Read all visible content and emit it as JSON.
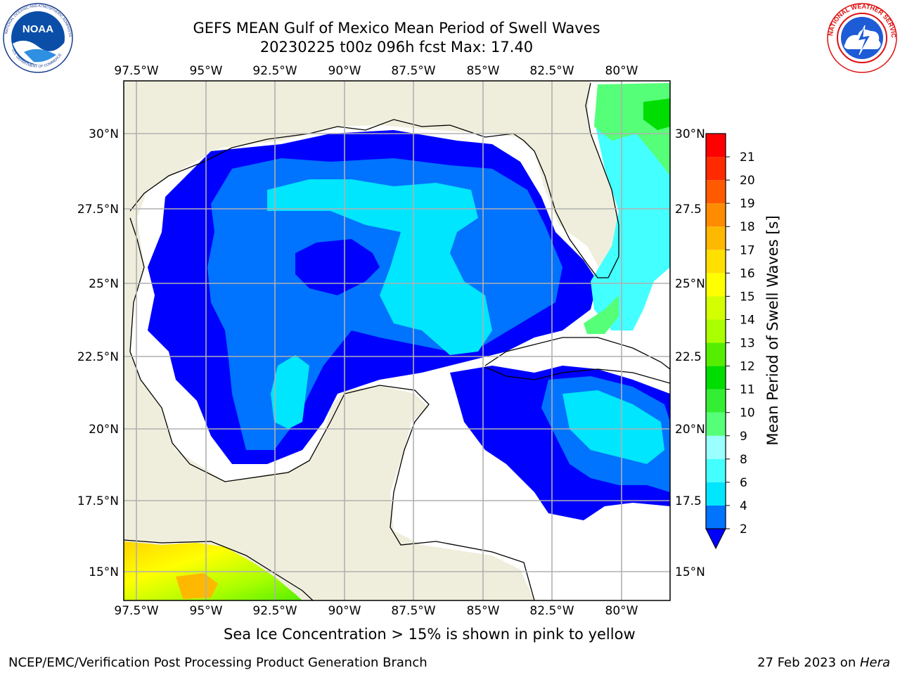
{
  "header": {
    "title_line1": "GEFS MEAN Gulf of Mexico Mean Period of Swell Waves",
    "title_line2": "20230225 t00z 096h fcst   Max: 17.40"
  },
  "logos": {
    "left": "NOAA",
    "left_ring_text": "NATIONAL OCEANIC AND ATMOSPHERIC ADMINISTRATION",
    "left_ring_bottom": "U.S. DEPARTMENT OF COMMERCE",
    "right_ring_text": "NATIONAL WEATHER SERVICE"
  },
  "map": {
    "lon_labels": [
      "97.5°W",
      "95°W",
      "92.5°W",
      "90°W",
      "87.5°W",
      "85°W",
      "82.5°W",
      "80°W"
    ],
    "lat_labels_left": [
      "30°N",
      "27.5°N",
      "25°N",
      "22.5°N",
      "20°N",
      "17.5°N",
      "15°N"
    ],
    "lat_labels_right": [
      "30°N",
      "27.5",
      "25°N",
      "22.5",
      "20°N",
      "17.5",
      "15°N"
    ],
    "colors": {
      "land": "#efeedc",
      "ocean_low": "#ffffff",
      "grid": "#b0b0b0"
    }
  },
  "colorbar": {
    "label": "Mean Period of Swell Waves [s]",
    "ticks": [
      "2",
      "4",
      "6",
      "8",
      "9",
      "10",
      "11",
      "12",
      "13",
      "14",
      "15",
      "16",
      "17",
      "18",
      "19",
      "20",
      "21"
    ],
    "colors": [
      "#0073ff",
      "#00e6ff",
      "#44ffff",
      "#99ffff",
      "#55ff77",
      "#33ee33",
      "#00dd00",
      "#55ee00",
      "#aaff00",
      "#d4ff00",
      "#ffff00",
      "#ffe000",
      "#ffb800",
      "#ff8c00",
      "#ff5a00",
      "#ff2a00",
      "#ff0000"
    ],
    "under_color": "#0000ff"
  },
  "footer": {
    "note": "Sea Ice Concentration > 15% is shown in pink to yellow",
    "credit": "NCEP/EMC/Verification Post Processing Product Generation Branch",
    "date": "27 Feb 2023 on ",
    "host": "Hera"
  }
}
